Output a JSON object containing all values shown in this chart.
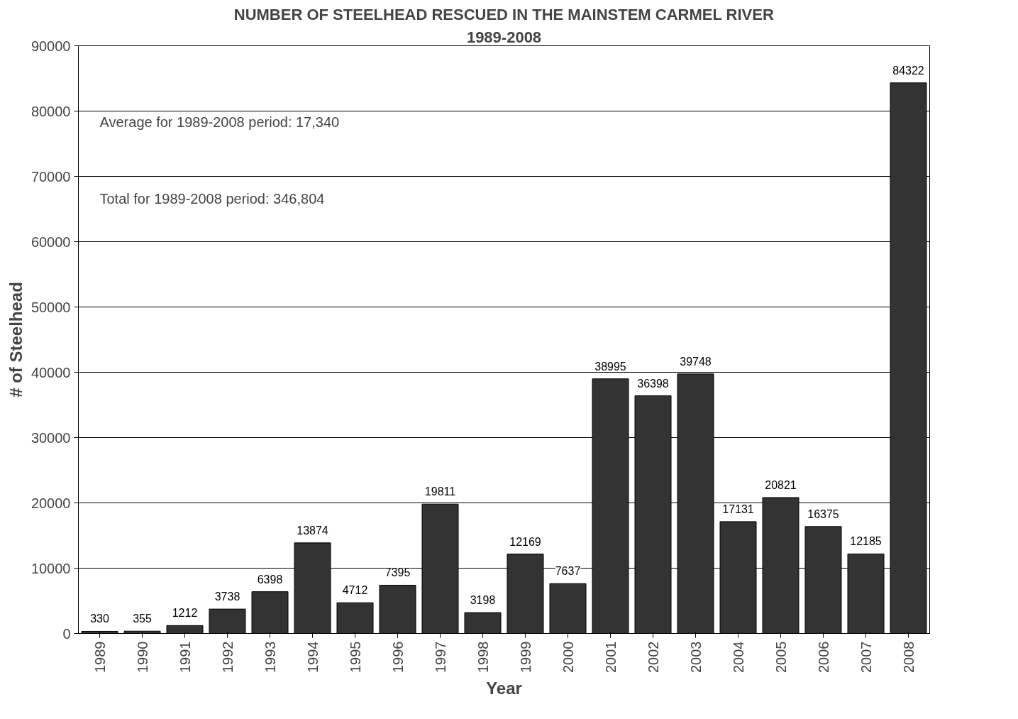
{
  "chart_data": {
    "type": "bar",
    "title": "NUMBER OF STEELHEAD RESCUED IN THE MAINSTEM CARMEL RIVER",
    "subtitle": "1989-2008",
    "xlabel": "Year",
    "ylabel": "# of Steelhead",
    "categories": [
      "1989",
      "1990",
      "1991",
      "1992",
      "1993",
      "1994",
      "1995",
      "1996",
      "1997",
      "1998",
      "1999",
      "2000",
      "2001",
      "2002",
      "2003",
      "2004",
      "2005",
      "2006",
      "2007",
      "2008"
    ],
    "values": [
      330,
      355,
      1212,
      3738,
      6398,
      13874,
      4712,
      7395,
      19811,
      3198,
      12169,
      7637,
      38995,
      36398,
      39748,
      17131,
      20821,
      16375,
      12185,
      84322
    ],
    "color": "#333333",
    "ylim": [
      0,
      90000
    ],
    "yticks": [
      0,
      10000,
      20000,
      30000,
      40000,
      50000,
      60000,
      70000,
      80000,
      90000
    ],
    "grid": "y",
    "data_labels": true,
    "annotations": [
      "Average for 1989-2008 period: 17,340",
      "Total for 1989-2008 period: 346,804"
    ]
  }
}
